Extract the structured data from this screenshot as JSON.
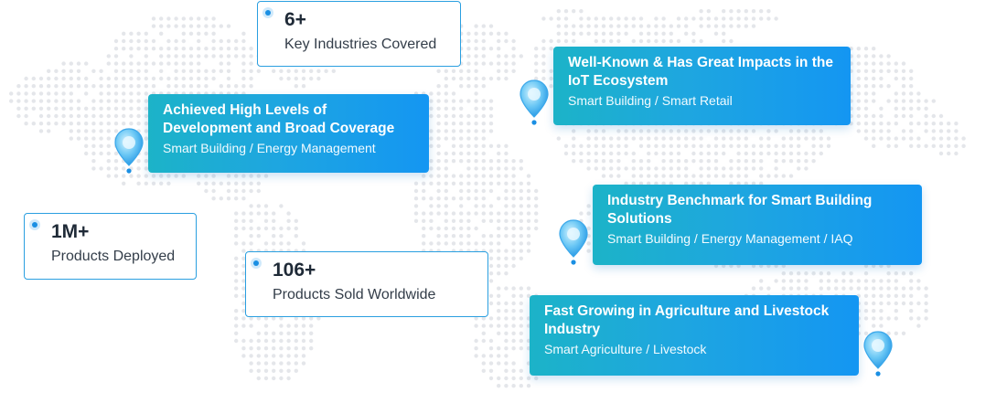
{
  "stats": [
    {
      "value": "6+",
      "label": "Key Industries Covered"
    },
    {
      "value": "1M+",
      "label": "Products Deployed"
    },
    {
      "value": "106+",
      "label": "Products Sold Worldwide"
    }
  ],
  "highlights": [
    {
      "title": "Achieved High Levels of Development and Broad Coverage",
      "subtitle": "Smart Building / Energy Management"
    },
    {
      "title": "Well-Known & Has Great Impacts in the IoT Ecosystem",
      "subtitle": "Smart Building / Smart Retail"
    },
    {
      "title": "Industry Benchmark for Smart Building Solutions",
      "subtitle": "Smart Building / Energy Management / IAQ"
    },
    {
      "title": "Fast Growing in Agriculture and Livestock Industry",
      "subtitle": "Smart Agriculture / Livestock"
    }
  ],
  "colors": {
    "accent": "#1496f2",
    "gradient_start": "#1cb3c8",
    "card_border": "#2a9fe0",
    "dot_map": "#e4e6ea"
  },
  "icons": {
    "pin": "location-pin-icon",
    "bullet": "bullet-dot-icon"
  }
}
